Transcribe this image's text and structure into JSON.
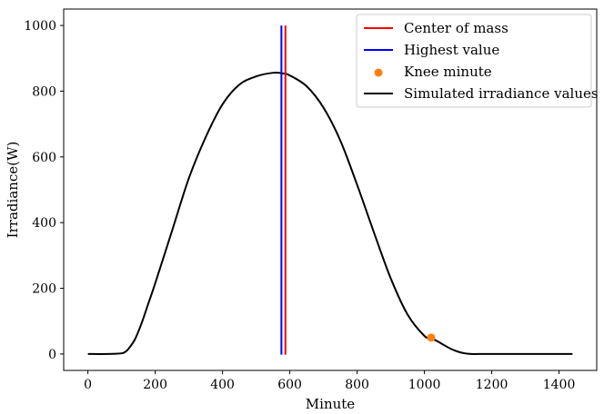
{
  "chart_data": {
    "type": "line",
    "xlabel": "Minute",
    "ylabel": "Irradiance(W)",
    "xlim": [
      -72,
      1512
    ],
    "ylim": [
      -50,
      1050
    ],
    "xticks": [
      0,
      200,
      400,
      600,
      800,
      1000,
      1200,
      1400
    ],
    "yticks": [
      0,
      200,
      400,
      600,
      800,
      1000
    ],
    "grid": false,
    "legend_position": "top-right",
    "series": [
      {
        "name": "Simulated irradiance values",
        "kind": "line",
        "color": "#000000",
        "x": [
          0,
          60,
          100,
          110,
          120,
          140,
          160,
          180,
          200,
          250,
          300,
          350,
          400,
          450,
          500,
          550,
          580,
          600,
          650,
          700,
          750,
          800,
          850,
          900,
          950,
          1000,
          1020,
          1040,
          1060,
          1080,
          1100,
          1120,
          1140,
          1160,
          1200,
          1300,
          1440
        ],
        "y": [
          0,
          0,
          2,
          6,
          15,
          45,
          95,
          155,
          215,
          375,
          535,
          660,
          760,
          820,
          845,
          856,
          854,
          848,
          815,
          750,
          650,
          515,
          370,
          230,
          120,
          55,
          48,
          38,
          26,
          15,
          7,
          2,
          0,
          0,
          0,
          0,
          0
        ]
      },
      {
        "name": "Center of mass",
        "kind": "vline",
        "color": "#ff0000",
        "x": 587,
        "y_range": [
          -2,
          1000
        ]
      },
      {
        "name": "Highest value",
        "kind": "vline",
        "color": "#0000ff",
        "x": 575,
        "y_range": [
          -2,
          1000
        ]
      },
      {
        "name": "Knee minute",
        "kind": "scatter",
        "color": "#ff7f0e",
        "x": [
          1020
        ],
        "y": [
          50
        ]
      }
    ],
    "legend": [
      {
        "label": "Center of mass",
        "kind": "line",
        "color": "#ff0000"
      },
      {
        "label": "Highest value",
        "kind": "line",
        "color": "#0000ff"
      },
      {
        "label": "Knee minute",
        "kind": "marker",
        "color": "#ff7f0e"
      },
      {
        "label": "Simulated irradiance values",
        "kind": "line",
        "color": "#000000"
      }
    ]
  }
}
